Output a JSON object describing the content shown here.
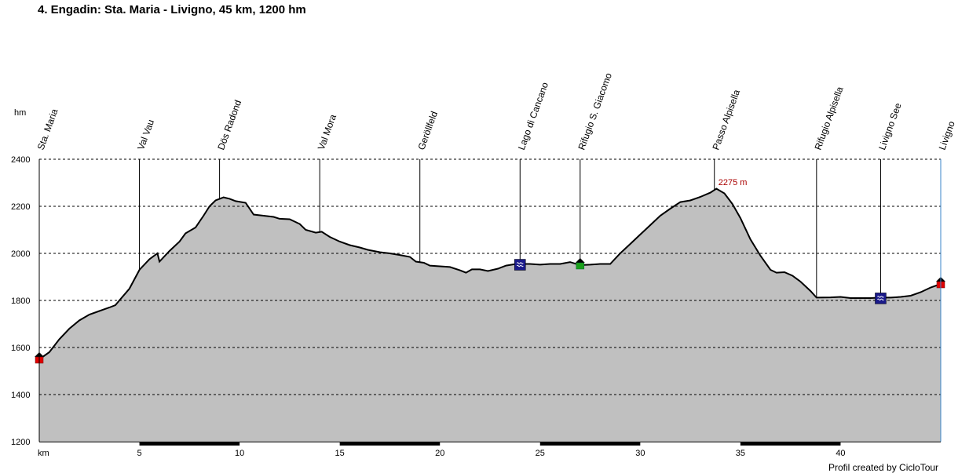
{
  "title": "4. Engadin: Sta. Maria - Livigno, 45 km, 1200 hm",
  "credit": "Profil created by CicloTour",
  "chart_data": {
    "type": "area",
    "title": "4. Engadin: Sta. Maria - Livigno, 45 km, 1200 hm",
    "xlabel": "km",
    "ylabel": "hm",
    "xlim": [
      0,
      45
    ],
    "ylim": [
      1200,
      2400
    ],
    "x_ticks": [
      5,
      10,
      15,
      20,
      25,
      30,
      35,
      40
    ],
    "y_ticks": [
      1200,
      1400,
      1600,
      1800,
      2000,
      2200,
      2400
    ],
    "grid": "horizontal dashed",
    "fill_color": "#c0c0c0",
    "line_color": "#000000",
    "profile": [
      [
        0,
        1550
      ],
      [
        0.5,
        1580
      ],
      [
        1.0,
        1635
      ],
      [
        1.5,
        1680
      ],
      [
        2.0,
        1715
      ],
      [
        2.5,
        1740
      ],
      [
        3.0,
        1755
      ],
      [
        3.5,
        1770
      ],
      [
        3.8,
        1780
      ],
      [
        4.5,
        1850
      ],
      [
        5.0,
        1930
      ],
      [
        5.5,
        1975
      ],
      [
        5.9,
        2000
      ],
      [
        6.0,
        1965
      ],
      [
        6.5,
        2010
      ],
      [
        7.0,
        2050
      ],
      [
        7.3,
        2085
      ],
      [
        7.8,
        2110
      ],
      [
        8.2,
        2160
      ],
      [
        8.5,
        2200
      ],
      [
        8.8,
        2225
      ],
      [
        9.2,
        2238
      ],
      [
        9.5,
        2232
      ],
      [
        9.8,
        2222
      ],
      [
        10.3,
        2215
      ],
      [
        10.7,
        2165
      ],
      [
        11.2,
        2160
      ],
      [
        11.7,
        2155
      ],
      [
        12.0,
        2147
      ],
      [
        12.5,
        2145
      ],
      [
        13.0,
        2125
      ],
      [
        13.3,
        2100
      ],
      [
        13.8,
        2088
      ],
      [
        14.1,
        2092
      ],
      [
        14.5,
        2070
      ],
      [
        15.0,
        2050
      ],
      [
        15.5,
        2035
      ],
      [
        16.0,
        2025
      ],
      [
        16.4,
        2015
      ],
      [
        17.0,
        2005
      ],
      [
        17.5,
        2000
      ],
      [
        18.0,
        1993
      ],
      [
        18.5,
        1985
      ],
      [
        18.8,
        1965
      ],
      [
        19.2,
        1960
      ],
      [
        19.5,
        1948
      ],
      [
        20.0,
        1945
      ],
      [
        20.5,
        1942
      ],
      [
        21.0,
        1928
      ],
      [
        21.3,
        1918
      ],
      [
        21.6,
        1932
      ],
      [
        22.0,
        1932
      ],
      [
        22.4,
        1925
      ],
      [
        22.9,
        1935
      ],
      [
        23.3,
        1948
      ],
      [
        23.8,
        1955
      ],
      [
        24.5,
        1955
      ],
      [
        25.0,
        1952
      ],
      [
        25.5,
        1955
      ],
      [
        26.0,
        1955
      ],
      [
        26.5,
        1963
      ],
      [
        27.0,
        1950
      ],
      [
        27.5,
        1952
      ],
      [
        28.0,
        1955
      ],
      [
        28.5,
        1955
      ],
      [
        29.0,
        2000
      ],
      [
        29.5,
        2040
      ],
      [
        30.0,
        2080
      ],
      [
        30.5,
        2120
      ],
      [
        31.0,
        2160
      ],
      [
        31.5,
        2190
      ],
      [
        32.0,
        2218
      ],
      [
        32.5,
        2225
      ],
      [
        33.0,
        2240
      ],
      [
        33.5,
        2258
      ],
      [
        33.8,
        2275
      ],
      [
        34.2,
        2255
      ],
      [
        34.6,
        2210
      ],
      [
        35.0,
        2150
      ],
      [
        35.5,
        2060
      ],
      [
        36.0,
        1990
      ],
      [
        36.5,
        1930
      ],
      [
        36.8,
        1918
      ],
      [
        37.2,
        1920
      ],
      [
        37.6,
        1905
      ],
      [
        38.0,
        1880
      ],
      [
        38.5,
        1840
      ],
      [
        38.8,
        1812
      ],
      [
        39.5,
        1813
      ],
      [
        40.0,
        1815
      ],
      [
        40.5,
        1810
      ],
      [
        41.0,
        1810
      ],
      [
        41.5,
        1810
      ],
      [
        42.0,
        1812
      ],
      [
        42.5,
        1812
      ],
      [
        43.0,
        1815
      ],
      [
        43.5,
        1820
      ],
      [
        44.0,
        1835
      ],
      [
        44.5,
        1855
      ],
      [
        45.0,
        1870
      ]
    ],
    "waypoints": [
      {
        "km": 0,
        "name": "Sta. Maria",
        "icon": "house-icon"
      },
      {
        "km": 5,
        "name": "Val Vau"
      },
      {
        "km": 9,
        "name": "Dös Radond"
      },
      {
        "km": 14,
        "name": "Val Mora"
      },
      {
        "km": 19,
        "name": "Geröllfeld"
      },
      {
        "km": 24,
        "name": "Lago di Cancano",
        "icon": "lake-icon"
      },
      {
        "km": 27,
        "name": "Rifugio S. Giacomo",
        "icon": "hut-icon"
      },
      {
        "km": 33.7,
        "name": "Passo Alpisella"
      },
      {
        "km": 38.8,
        "name": "Rifugio Alpisella"
      },
      {
        "km": 42,
        "name": "Livigno See",
        "icon": "lake-icon"
      },
      {
        "km": 45,
        "name": "Livigno",
        "icon": "house-icon"
      }
    ],
    "annotations": [
      {
        "km": 33.7,
        "text": "2275 m",
        "color": "#aa0000"
      }
    ]
  }
}
